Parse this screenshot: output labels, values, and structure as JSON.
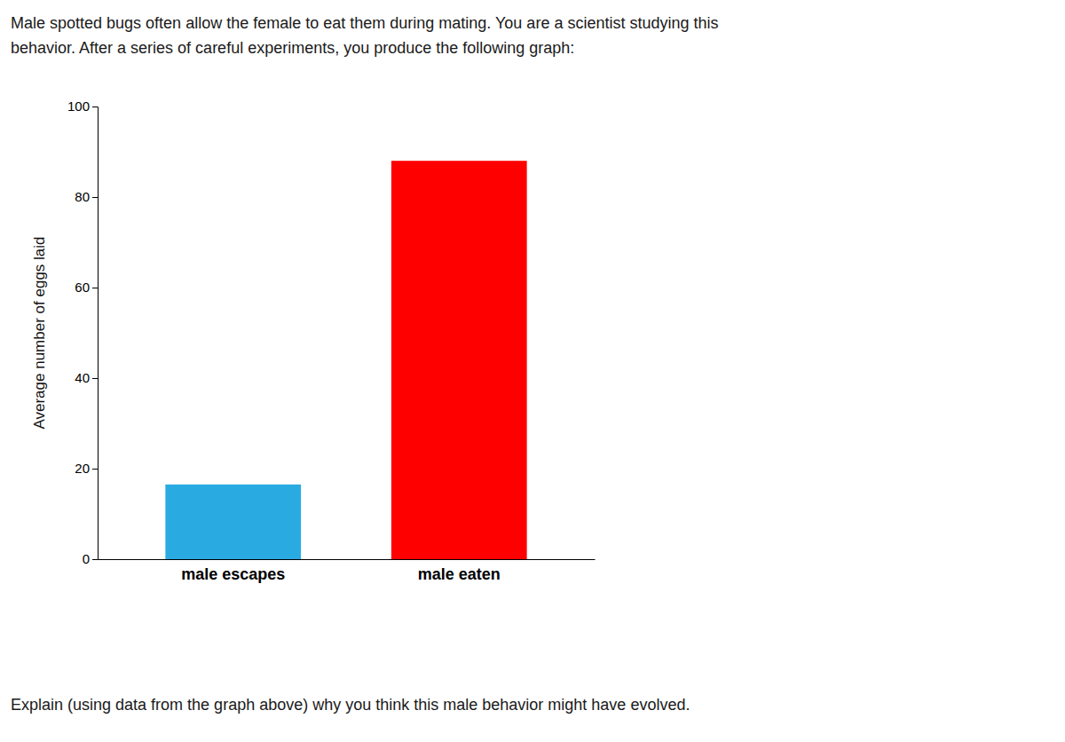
{
  "chart_data": {
    "type": "bar",
    "title": "Male spotted bugs often allow the female to eat them during mating. You are a scientist studying this",
    "subtitle": "behavior. After a series of careful experiments, you produce the following graph:",
    "annotations": [
      "Explain (using data from the graph above) why you think this male behavior might have evolved."
    ],
    "y_label": "Average number of eggs laid",
    "categories": [
      "male escapes",
      "male eaten"
    ],
    "values": [
      16.5,
      88
    ],
    "colors": [
      "#29ABE2",
      "#FF0000"
    ],
    "ylim": [
      0,
      100
    ],
    "yticks": [
      0,
      20,
      40,
      60,
      80,
      100
    ],
    "grid": false
  }
}
